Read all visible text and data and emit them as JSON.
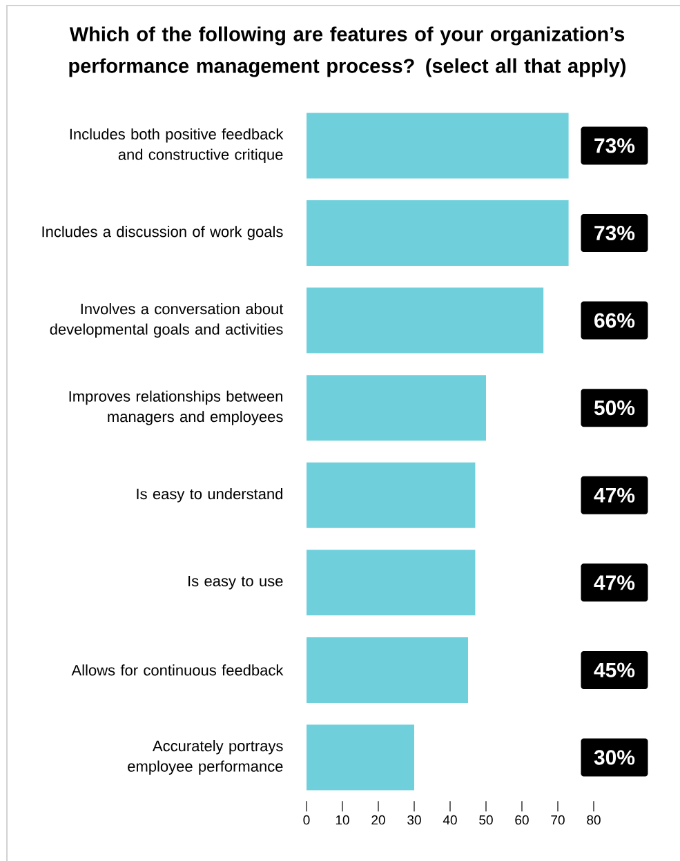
{
  "chart_data": {
    "type": "bar",
    "orientation": "horizontal",
    "title": "Which of the following are features of your organization’s performance management process? (select all that apply)",
    "categories": [
      "Includes both positive feedback and constructive critique",
      "Includes a discussion of work goals",
      "Involves a conversation about developmental goals and activities",
      "Improves relationships between managers and employees",
      "Is easy to understand",
      "Is easy to use",
      "Allows for continuous feedback",
      "Accurately portrays employee performance"
    ],
    "values": [
      73,
      73,
      66,
      50,
      47,
      47,
      45,
      30
    ],
    "value_labels": [
      "73%",
      "73%",
      "66%",
      "50%",
      "47%",
      "47%",
      "45%",
      "30%"
    ],
    "color": "#6fd0dc",
    "xlim": [
      0,
      80
    ],
    "xticks": [
      0,
      10,
      20,
      30,
      40,
      50,
      60,
      70,
      80
    ],
    "grid": false
  }
}
